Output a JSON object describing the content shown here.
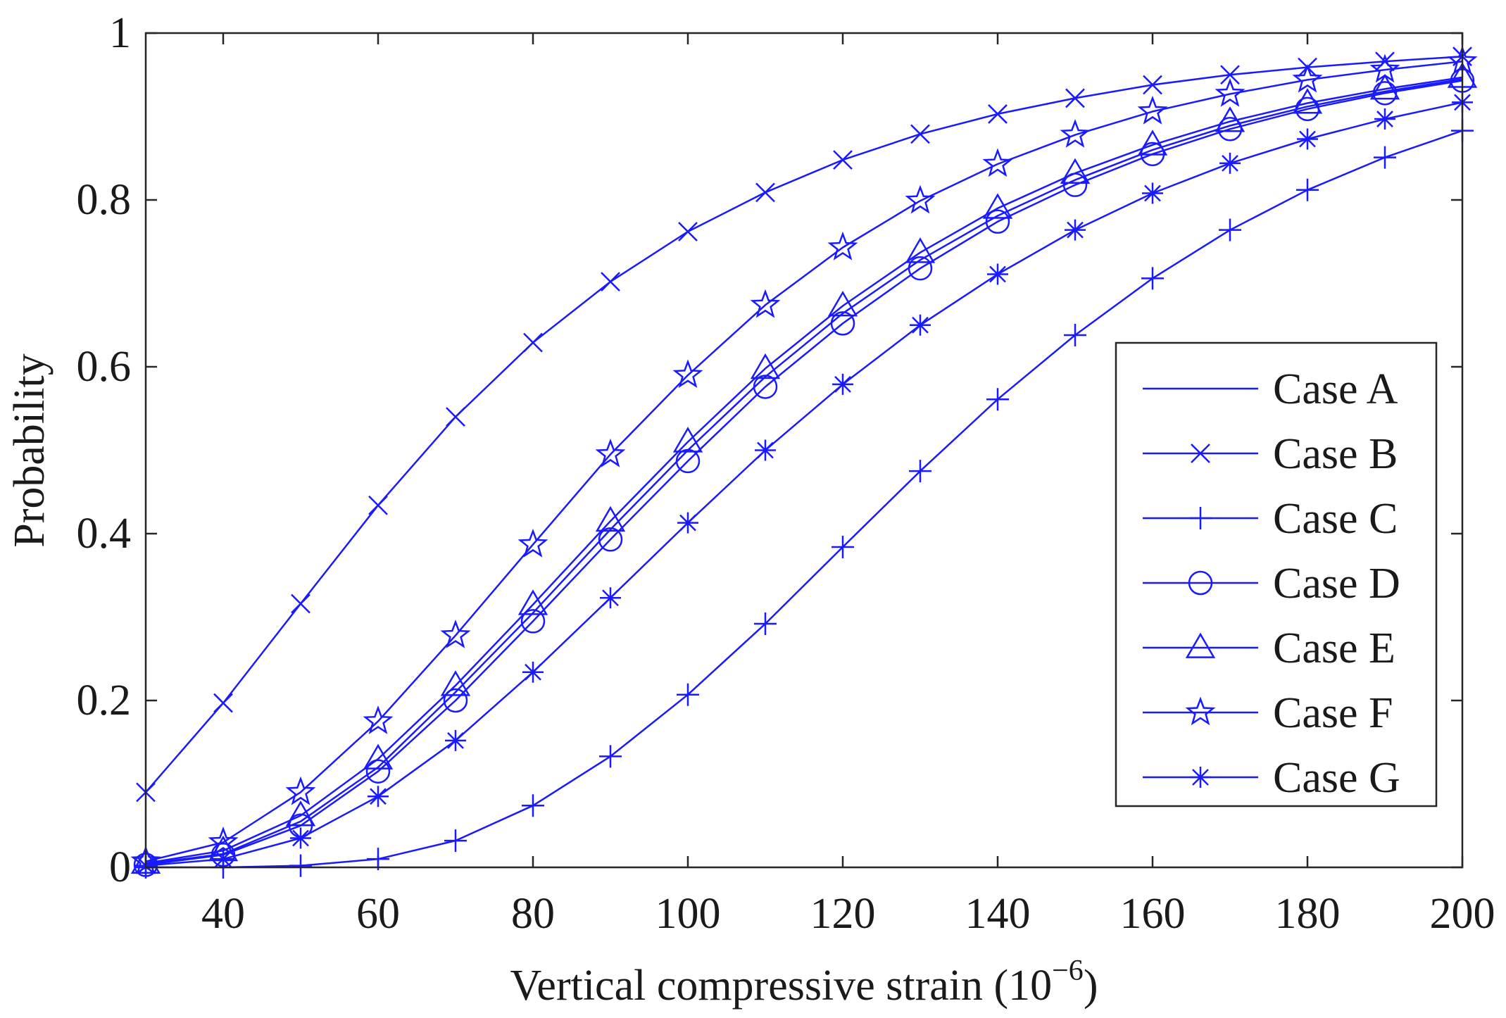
{
  "chart_data": {
    "type": "line",
    "title": "",
    "xlabel": "Vertical compressive strain (10",
    "xlabel_exponent": "−6",
    "xlabel_close": ")",
    "ylabel": "Probability",
    "xlim": [
      30,
      200
    ],
    "ylim": [
      0,
      1
    ],
    "x_ticks": [
      40,
      60,
      80,
      100,
      120,
      140,
      160,
      180,
      200
    ],
    "y_ticks": [
      0,
      0.2,
      0.4,
      0.6,
      0.8,
      1
    ],
    "x_tick_labels": [
      "40",
      "60",
      "80",
      "100",
      "120",
      "140",
      "160",
      "180",
      "200"
    ],
    "y_tick_labels": [
      "0",
      "0.2",
      "0.4",
      "0.6",
      "0.8",
      "1"
    ],
    "grid": false,
    "legend_position": "right",
    "line_color": "#1a1aff",
    "x": [
      30,
      40,
      50,
      60,
      70,
      80,
      90,
      100,
      110,
      120,
      130,
      140,
      150,
      160,
      170,
      180,
      190,
      200
    ],
    "series": [
      {
        "name": "Case A",
        "marker": "none",
        "values": [
          0.004,
          0.016,
          0.055,
          0.12,
          0.21,
          0.305,
          0.405,
          0.5,
          0.588,
          0.664,
          0.728,
          0.781,
          0.824,
          0.86,
          0.889,
          0.912,
          0.93,
          0.945
        ]
      },
      {
        "name": "Case B",
        "marker": "x",
        "values": [
          0.09,
          0.197,
          0.316,
          0.434,
          0.54,
          0.629,
          0.702,
          0.762,
          0.809,
          0.848,
          0.879,
          0.903,
          0.922,
          0.938,
          0.95,
          0.959,
          0.966,
          0.972
        ]
      },
      {
        "name": "Case C",
        "marker": "plus",
        "values": [
          0.0,
          0.0,
          0.002,
          0.01,
          0.032,
          0.074,
          0.133,
          0.207,
          0.292,
          0.384,
          0.475,
          0.561,
          0.638,
          0.706,
          0.764,
          0.812,
          0.851,
          0.883
        ]
      },
      {
        "name": "Case D",
        "marker": "circle",
        "values": [
          0.003,
          0.015,
          0.05,
          0.115,
          0.2,
          0.295,
          0.393,
          0.487,
          0.576,
          0.652,
          0.718,
          0.774,
          0.818,
          0.855,
          0.885,
          0.909,
          0.928,
          0.943
        ]
      },
      {
        "name": "Case E",
        "marker": "triangle",
        "values": [
          0.005,
          0.02,
          0.062,
          0.13,
          0.218,
          0.315,
          0.415,
          0.51,
          0.598,
          0.673,
          0.737,
          0.79,
          0.832,
          0.866,
          0.894,
          0.916,
          0.933,
          0.947
        ]
      },
      {
        "name": "Case F",
        "marker": "star",
        "values": [
          0.007,
          0.03,
          0.09,
          0.175,
          0.278,
          0.387,
          0.495,
          0.59,
          0.674,
          0.743,
          0.799,
          0.843,
          0.878,
          0.906,
          0.927,
          0.944,
          0.956,
          0.966
        ]
      },
      {
        "name": "Case G",
        "marker": "asterisk",
        "values": [
          0.002,
          0.01,
          0.035,
          0.085,
          0.152,
          0.234,
          0.323,
          0.413,
          0.5,
          0.579,
          0.65,
          0.711,
          0.764,
          0.808,
          0.844,
          0.873,
          0.897,
          0.917
        ]
      }
    ]
  }
}
